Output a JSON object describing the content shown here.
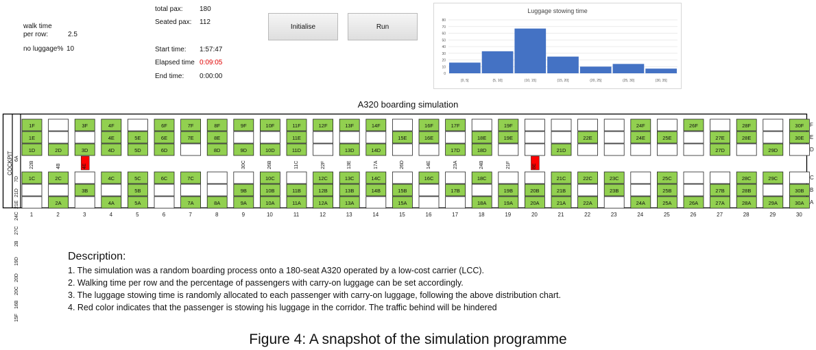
{
  "params": {
    "walk_label_1": "walk time",
    "walk_label_2": "per row:",
    "walk_value": "2.5",
    "luggage_label": "no luggage%",
    "luggage_value": "10"
  },
  "stats": {
    "total_label": "total pax:",
    "total_value": "180",
    "seated_label": "Seated pax:",
    "seated_value": "112",
    "start_label": "Start time:",
    "start_value": "1:57:47",
    "elapsed_label": "Elapsed time",
    "elapsed_value": "0:09:05",
    "end_label": "End time:",
    "end_value": "0:00:00"
  },
  "buttons": {
    "initialise": "Initialise",
    "run": "Run"
  },
  "chart_data": {
    "type": "bar",
    "title": "Luggage stowing time",
    "categories": [
      "[0, 5]",
      "(5, 10]",
      "(10, 15]",
      "(15, 20]",
      "(20, 25]",
      "(25, 30]",
      "(30, 35]"
    ],
    "values": [
      16,
      33,
      67,
      25,
      10,
      14,
      7
    ],
    "ylim": [
      0,
      80
    ],
    "yticks": [
      0,
      10,
      20,
      30,
      40,
      50,
      60,
      70,
      80
    ],
    "grid": true,
    "color": "#4472c4"
  },
  "simulation_title": "A320 boarding simulation",
  "cabin": {
    "cockpit_label": "COCKPIT",
    "cockpit_side_labels": [
      "6A",
      "7D",
      "21D",
      "21E",
      "24C"
    ],
    "row_letters": [
      "F",
      "E",
      "D",
      "C",
      "B",
      "A"
    ],
    "rows": [
      "1",
      "2",
      "3",
      "4",
      "5",
      "6",
      "7",
      "8",
      "9",
      "10",
      "11",
      "12",
      "13",
      "14",
      "15",
      "16",
      "17",
      "18",
      "19",
      "20",
      "21",
      "22",
      "23",
      "24",
      "25",
      "26",
      "27",
      "28",
      "29",
      "30"
    ],
    "seated": {
      "F": [
        "1F",
        "",
        "3F",
        "4F",
        "",
        "6F",
        "7F",
        "8F",
        "9F",
        "10F",
        "11F",
        "12F",
        "13F",
        "14F",
        "",
        "16F",
        "17F",
        "",
        "19F",
        "",
        "",
        "",
        "",
        "24F",
        "",
        "26F",
        "",
        "28F",
        "",
        "30F"
      ],
      "E": [
        "1E",
        "",
        "",
        "4E",
        "5E",
        "6E",
        "7E",
        "8E",
        "",
        "",
        "11E",
        "",
        "",
        "",
        "15E",
        "16E",
        "",
        "18E",
        "19E",
        "",
        "",
        "22E",
        "",
        "24E",
        "25E",
        "",
        "27E",
        "28E",
        "",
        "30E"
      ],
      "D": [
        "1D",
        "2D",
        "3D",
        "4D",
        "5D",
        "6D",
        "",
        "8D",
        "9D",
        "10D",
        "11D",
        "",
        "13D",
        "14D",
        "",
        "",
        "17D",
        "18D",
        "",
        "",
        "21D",
        "",
        "",
        "",
        "",
        "",
        "27D",
        "",
        "29D",
        ""
      ],
      "C": [
        "1C",
        "2C",
        "",
        "4C",
        "5C",
        "6C",
        "7C",
        "",
        "",
        "10C",
        "",
        "12C",
        "13C",
        "14C",
        "",
        "16C",
        "",
        "18C",
        "",
        "",
        "21C",
        "22C",
        "23C",
        "",
        "25C",
        "",
        "",
        "28C",
        "29C",
        ""
      ],
      "B": [
        "",
        "",
        "3B",
        "",
        "5B",
        "",
        "",
        "",
        "9B",
        "10B",
        "11B",
        "12B",
        "13B",
        "14B",
        "15B",
        "",
        "17B",
        "",
        "19B",
        "20B",
        "21B",
        "",
        "23B",
        "",
        "25B",
        "",
        "27B",
        "28B",
        "",
        "30B"
      ],
      "A": [
        "",
        "2A",
        "",
        "4A",
        "5A",
        "",
        "7A",
        "8A",
        "9A",
        "10A",
        "11A",
        "12A",
        "13A",
        "",
        "15A",
        "",
        "",
        "18A",
        "19A",
        "20A",
        "21A",
        "22A",
        "",
        "24A",
        "25A",
        "26A",
        "27A",
        "28A",
        "29A",
        "30A"
      ]
    },
    "aisle": [
      "22B",
      "4B",
      "4E",
      "",
      "",
      "",
      "",
      "",
      "30C",
      "26B",
      "11C",
      "22F",
      "13E",
      "17A",
      "26D",
      "14E",
      "23A",
      "24B",
      "21F",
      "8E",
      "",
      "",
      "",
      "",
      "",
      "",
      "",
      "",
      "",
      ""
    ],
    "aisle_red": [
      "4E",
      "8E"
    ],
    "queue": [
      "27C",
      "2B",
      "19D",
      "20D",
      "20C",
      "16B",
      "15F"
    ]
  },
  "description": {
    "heading": "Description:",
    "lines": [
      "1. The simulation was a random boarding process onto a 180-seat A320 operated by a low-cost carrier (LCC).",
      "2. Walking time per row and the percentage of passengers with carry-on luggage can be set accordingly.",
      "3. The luggage stowing time is randomly allocated to each passenger with carry-on luggage, following the above distribution chart.",
      "4. Red color indicates that the passenger is stowing his luggage in the corridor. The traffic behind will be hindered"
    ]
  },
  "caption": "Figure 4: A snapshot of the simulation programme"
}
